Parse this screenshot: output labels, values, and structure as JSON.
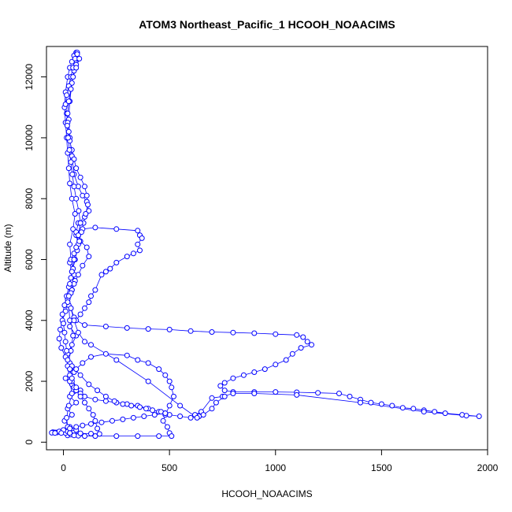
{
  "chart_data": {
    "type": "scatter",
    "title": "ATOM3 Northeast_Pacific_1 HCOOH_NOAACIMS",
    "xlabel": "HCOOH_NOAACIMS",
    "ylabel": "Altitude (m)",
    "xlim": [
      -80,
      2000
    ],
    "ylim": [
      -250,
      13000
    ],
    "xticks": [
      0,
      500,
      1000,
      1500,
      2000
    ],
    "xtick_labels": [
      "0",
      "500",
      "1000",
      "1500",
      "2000"
    ],
    "yticks": [
      0,
      2000,
      4000,
      6000,
      8000,
      10000,
      12000
    ],
    "ytick_labels": [
      "0",
      "2000",
      "4000",
      "6000",
      "8000",
      "10000",
      "12000"
    ],
    "grid": false,
    "marker": "open-circle",
    "connected": true,
    "series_color": "#0000ff",
    "series": [
      {
        "points": [
          [
            20,
            220
          ],
          [
            35,
            250
          ],
          [
            10,
            300
          ],
          [
            -30,
            320
          ],
          [
            -50,
            330
          ],
          [
            20,
            350
          ],
          [
            60,
            400
          ],
          [
            30,
            500
          ],
          [
            5,
            700
          ],
          [
            40,
            900
          ],
          [
            20,
            1100
          ],
          [
            60,
            1300
          ],
          [
            30,
            1500
          ],
          [
            80,
            1700
          ],
          [
            40,
            1900
          ],
          [
            10,
            2100
          ],
          [
            50,
            2300
          ],
          [
            30,
            2600
          ],
          [
            20,
            2900
          ],
          [
            40,
            3200
          ],
          [
            60,
            3500
          ],
          [
            30,
            3800
          ],
          [
            50,
            4100
          ],
          [
            35,
            4400
          ],
          [
            20,
            4700
          ],
          [
            40,
            5000
          ],
          [
            55,
            5300
          ],
          [
            40,
            5600
          ],
          [
            30,
            5900
          ],
          [
            50,
            6200
          ],
          [
            70,
            6500
          ],
          [
            60,
            6800
          ],
          [
            90,
            7000
          ],
          [
            150,
            7050
          ],
          [
            250,
            7000
          ],
          [
            350,
            6950
          ],
          [
            360,
            6800
          ],
          [
            370,
            6700
          ],
          [
            350,
            6500
          ],
          [
            360,
            6300
          ],
          [
            330,
            6200
          ],
          [
            300,
            6100
          ],
          [
            250,
            5900
          ],
          [
            220,
            5700
          ],
          [
            200,
            5600
          ],
          [
            180,
            5500
          ],
          [
            150,
            5000
          ],
          [
            130,
            4800
          ],
          [
            120,
            4600
          ],
          [
            100,
            4400
          ],
          [
            80,
            4200
          ],
          [
            60,
            4000
          ],
          [
            100,
            3850
          ],
          [
            200,
            3800
          ],
          [
            300,
            3750
          ],
          [
            400,
            3720
          ],
          [
            500,
            3700
          ],
          [
            600,
            3650
          ],
          [
            700,
            3620
          ],
          [
            800,
            3600
          ],
          [
            900,
            3580
          ],
          [
            1000,
            3550
          ],
          [
            1100,
            3520
          ],
          [
            1130,
            3450
          ],
          [
            1150,
            3300
          ],
          [
            1170,
            3200
          ],
          [
            1120,
            3100
          ],
          [
            1080,
            2900
          ],
          [
            1050,
            2700
          ],
          [
            1000,
            2550
          ],
          [
            950,
            2400
          ],
          [
            900,
            2300
          ],
          [
            850,
            2200
          ],
          [
            800,
            2100
          ],
          [
            760,
            1950
          ],
          [
            740,
            1850
          ],
          [
            760,
            1700
          ],
          [
            800,
            1650
          ],
          [
            900,
            1650
          ],
          [
            1000,
            1650
          ],
          [
            1100,
            1640
          ],
          [
            1200,
            1620
          ],
          [
            1300,
            1600
          ],
          [
            1350,
            1500
          ],
          [
            1400,
            1400
          ],
          [
            1450,
            1300
          ],
          [
            1500,
            1250
          ],
          [
            1550,
            1200
          ],
          [
            1600,
            1130
          ],
          [
            1650,
            1100
          ],
          [
            1700,
            1050
          ],
          [
            1750,
            1000
          ],
          [
            1800,
            950
          ],
          [
            1880,
            900
          ],
          [
            1960,
            850
          ],
          [
            1900,
            870
          ],
          [
            1700,
            1000
          ],
          [
            1400,
            1300
          ],
          [
            1100,
            1550
          ],
          [
            900,
            1600
          ],
          [
            800,
            1600
          ],
          [
            750,
            1500
          ],
          [
            700,
            1450
          ],
          [
            650,
            1000
          ],
          [
            620,
            900
          ],
          [
            640,
            850
          ],
          [
            600,
            800
          ],
          [
            550,
            850
          ],
          [
            500,
            900
          ],
          [
            480,
            950
          ],
          [
            450,
            1000
          ],
          [
            400,
            1100
          ],
          [
            350,
            1200
          ],
          [
            300,
            1250
          ],
          [
            250,
            1300
          ],
          [
            200,
            1350
          ],
          [
            150,
            1400
          ],
          [
            100,
            1500
          ],
          [
            80,
            1600
          ],
          [
            60,
            1700
          ],
          [
            50,
            1800
          ],
          [
            40,
            2000
          ],
          [
            30,
            2200
          ],
          [
            60,
            2400
          ],
          [
            90,
            2600
          ],
          [
            130,
            2800
          ],
          [
            200,
            2900
          ],
          [
            300,
            2850
          ],
          [
            350,
            2700
          ],
          [
            400,
            2600
          ],
          [
            450,
            2400
          ],
          [
            480,
            2200
          ],
          [
            500,
            2000
          ],
          [
            510,
            1800
          ],
          [
            520,
            1500
          ],
          [
            500,
            1200
          ],
          [
            480,
            900
          ],
          [
            470,
            700
          ],
          [
            490,
            500
          ],
          [
            500,
            300
          ],
          [
            510,
            200
          ],
          [
            450,
            200
          ],
          [
            350,
            200
          ],
          [
            250,
            200
          ],
          [
            150,
            200
          ],
          [
            100,
            200
          ],
          [
            70,
            210
          ],
          [
            50,
            220
          ],
          [
            30,
            300
          ],
          [
            20,
            500
          ],
          [
            15,
            800
          ],
          [
            25,
            1200
          ],
          [
            40,
            1600
          ],
          [
            30,
            2000
          ],
          [
            20,
            2500
          ],
          [
            35,
            3000
          ],
          [
            45,
            3500
          ],
          [
            30,
            4000
          ],
          [
            25,
            4500
          ],
          [
            40,
            5000
          ],
          [
            50,
            5500
          ],
          [
            35,
            6000
          ],
          [
            30,
            6500
          ],
          [
            45,
            7000
          ],
          [
            55,
            7500
          ],
          [
            40,
            8000
          ],
          [
            30,
            8500
          ],
          [
            25,
            9000
          ],
          [
            20,
            9500
          ],
          [
            15,
            10000
          ],
          [
            10,
            10500
          ],
          [
            5,
            11000
          ],
          [
            10,
            11500
          ],
          [
            20,
            12000
          ],
          [
            30,
            12300
          ],
          [
            40,
            12500
          ],
          [
            50,
            12700
          ],
          [
            60,
            12800
          ],
          [
            65,
            12800
          ],
          [
            70,
            12600
          ],
          [
            60,
            12400
          ],
          [
            50,
            12200
          ],
          [
            40,
            11800
          ],
          [
            30,
            11200
          ],
          [
            25,
            10600
          ],
          [
            30,
            10000
          ],
          [
            40,
            9400
          ],
          [
            50,
            8800
          ],
          [
            70,
            8400
          ],
          [
            90,
            8100
          ],
          [
            110,
            7900
          ],
          [
            120,
            7600
          ],
          [
            100,
            7400
          ],
          [
            70,
            7200
          ],
          [
            60,
            6900
          ],
          [
            80,
            6600
          ],
          [
            110,
            6400
          ],
          [
            120,
            6100
          ],
          [
            90,
            5800
          ],
          [
            70,
            5500
          ],
          [
            50,
            5200
          ],
          [
            35,
            4900
          ],
          [
            20,
            4600
          ],
          [
            10,
            4300
          ],
          [
            -5,
            4000
          ],
          [
            -15,
            3700
          ],
          [
            -20,
            3400
          ],
          [
            -10,
            3100
          ],
          [
            10,
            2800
          ],
          [
            40,
            2500
          ],
          [
            80,
            2200
          ],
          [
            120,
            1900
          ],
          [
            160,
            1700
          ],
          [
            200,
            1500
          ],
          [
            240,
            1350
          ],
          [
            280,
            1250
          ],
          [
            320,
            1200
          ],
          [
            360,
            1150
          ],
          [
            390,
            1100
          ],
          [
            420,
            1050
          ],
          [
            460,
            1000
          ],
          [
            480,
            950
          ],
          [
            430,
            900
          ],
          [
            380,
            850
          ],
          [
            330,
            800
          ],
          [
            280,
            750
          ],
          [
            230,
            700
          ],
          [
            180,
            650
          ],
          [
            130,
            600
          ],
          [
            90,
            550
          ],
          [
            60,
            500
          ],
          [
            30,
            450
          ],
          [
            0,
            400
          ],
          [
            -20,
            350
          ],
          [
            -40,
            320
          ],
          [
            -55,
            310
          ],
          [
            -40,
            300
          ],
          [
            -10,
            300
          ],
          [
            30,
            300
          ],
          [
            80,
            290
          ],
          [
            130,
            280
          ],
          [
            170,
            270
          ],
          [
            160,
            450
          ],
          [
            150,
            700
          ],
          [
            140,
            900
          ],
          [
            120,
            1100
          ],
          [
            100,
            1300
          ],
          [
            80,
            1500
          ],
          [
            60,
            1800
          ],
          [
            40,
            2100
          ],
          [
            30,
            2400
          ],
          [
            20,
            2700
          ],
          [
            15,
            3000
          ],
          [
            10,
            3300
          ],
          [
            5,
            3600
          ],
          [
            0,
            3900
          ],
          [
            -5,
            4200
          ],
          [
            5,
            4500
          ],
          [
            15,
            4800
          ],
          [
            25,
            5100
          ],
          [
            35,
            5400
          ],
          [
            45,
            5700
          ],
          [
            55,
            6000
          ],
          [
            65,
            6300
          ],
          [
            75,
            6600
          ],
          [
            85,
            6900
          ],
          [
            95,
            7200
          ],
          [
            105,
            7500
          ],
          [
            115,
            7800
          ],
          [
            110,
            8100
          ],
          [
            100,
            8400
          ],
          [
            80,
            8700
          ],
          [
            60,
            9000
          ],
          [
            50,
            9300
          ],
          [
            40,
            9600
          ],
          [
            30,
            9900
          ],
          [
            25,
            10200
          ],
          [
            20,
            10500
          ],
          [
            15,
            10800
          ],
          [
            10,
            11100
          ],
          [
            15,
            11400
          ],
          [
            25,
            11700
          ],
          [
            35,
            12000
          ],
          [
            45,
            12300
          ],
          [
            55,
            12600
          ],
          [
            65,
            12750
          ],
          [
            75,
            12600
          ],
          [
            60,
            12300
          ],
          [
            45,
            12000
          ],
          [
            35,
            11600
          ],
          [
            25,
            11200
          ],
          [
            20,
            10800
          ],
          [
            18,
            10400
          ],
          [
            22,
            10000
          ],
          [
            28,
            9600
          ],
          [
            35,
            9200
          ],
          [
            42,
            8800
          ],
          [
            50,
            8400
          ],
          [
            60,
            8000
          ],
          [
            72,
            7600
          ],
          [
            80,
            7200
          ],
          [
            70,
            6800
          ],
          [
            60,
            6400
          ],
          [
            50,
            6000
          ],
          [
            40,
            5600
          ],
          [
            30,
            5200
          ],
          [
            25,
            4800
          ],
          [
            35,
            4400
          ],
          [
            50,
            4000
          ],
          [
            70,
            3600
          ],
          [
            100,
            3300
          ],
          [
            130,
            3200
          ],
          [
            250,
            2700
          ],
          [
            400,
            2000
          ],
          [
            550,
            1200
          ],
          [
            630,
            800
          ],
          [
            660,
            900
          ],
          [
            700,
            1100
          ],
          [
            720,
            1300
          ],
          [
            760,
            1500
          ]
        ]
      }
    ]
  }
}
